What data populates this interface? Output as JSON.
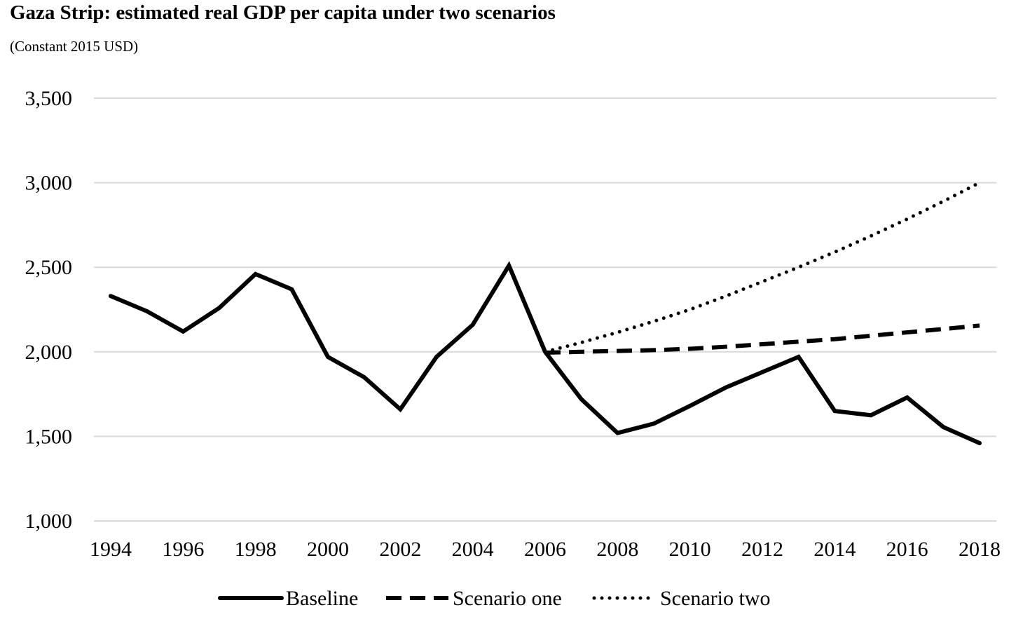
{
  "chart_data": {
    "type": "line",
    "title": "Gaza Strip: estimated real GDP per capita under two scenarios",
    "subtitle": "(Constant 2015 USD)",
    "xlabel": "",
    "ylabel": "",
    "x": [
      1994,
      1995,
      1996,
      1997,
      1998,
      1999,
      2000,
      2001,
      2002,
      2003,
      2004,
      2005,
      2006,
      2007,
      2008,
      2009,
      2010,
      2011,
      2012,
      2013,
      2014,
      2015,
      2016,
      2017,
      2018
    ],
    "xticks": [
      "1994",
      "1996",
      "1998",
      "2000",
      "2002",
      "2004",
      "2006",
      "2008",
      "2010",
      "2012",
      "2014",
      "2016",
      "2018"
    ],
    "ylim": [
      1000,
      3500
    ],
    "yticks": [
      "1,000",
      "1,500",
      "2,000",
      "2,500",
      "3,000",
      "3,500"
    ],
    "grid": true,
    "legend": "bottom",
    "series": [
      {
        "name": "Baseline",
        "style": "solid",
        "x": [
          1994,
          1995,
          1996,
          1997,
          1998,
          1999,
          2000,
          2001,
          2002,
          2003,
          2004,
          2005,
          2006,
          2007,
          2008,
          2009,
          2010,
          2011,
          2012,
          2013,
          2014,
          2015,
          2016,
          2017,
          2018
        ],
        "values": [
          2330,
          2240,
          2120,
          2260,
          2460,
          2370,
          1970,
          1850,
          1660,
          1970,
          2160,
          2510,
          2000,
          1720,
          1520,
          1575,
          1680,
          1790,
          1880,
          1970,
          1650,
          1625,
          1730,
          1555,
          1460
        ]
      },
      {
        "name": "Scenario one",
        "style": "dashed",
        "x": [
          2006,
          2007,
          2008,
          2009,
          2010,
          2011,
          2012,
          2013,
          2014,
          2015,
          2016,
          2017,
          2018
        ],
        "values": [
          1995,
          2000,
          2005,
          2010,
          2018,
          2030,
          2045,
          2060,
          2075,
          2095,
          2115,
          2135,
          2155
        ]
      },
      {
        "name": "Scenario two",
        "style": "dotted",
        "x": [
          2006,
          2007,
          2008,
          2009,
          2010,
          2011,
          2012,
          2013,
          2014,
          2015,
          2016,
          2017,
          2018
        ],
        "values": [
          2000,
          2055,
          2115,
          2180,
          2250,
          2330,
          2415,
          2500,
          2590,
          2685,
          2785,
          2890,
          3000
        ]
      }
    ],
    "colors": {
      "line": "#000000",
      "grid": "#d9d9d9"
    }
  }
}
